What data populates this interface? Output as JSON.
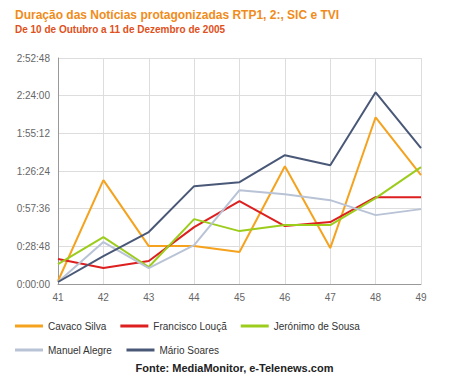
{
  "chart_data": {
    "type": "line",
    "title": "Duração das Notícias protagonizadas RTP1, 2:, SIC e TVI",
    "subtitle": "De 10 de Outubro a 11 de Dezembro de 2005",
    "annotations": [
      "Fonte: MediaMonitor, e-Telenews.com"
    ],
    "categories": [
      "41",
      "42",
      "43",
      "44",
      "45",
      "46",
      "47",
      "48",
      "49"
    ],
    "series": [
      {
        "name": "Cavaco Silva",
        "color": "#f5a21e",
        "values": [
          137,
          4763,
          1740,
          1740,
          1466,
          5404,
          1649,
          7649,
          4992
        ]
      },
      {
        "name": "Francisco Louçã",
        "color": "#dd1f1f",
        "values": [
          1145,
          733,
          1053,
          2611,
          3801,
          2656,
          2840,
          3985,
          3985
        ]
      },
      {
        "name": "Jerónimo de Sousa",
        "color": "#9ccc1c",
        "values": [
          916,
          2153,
          779,
          2977,
          2427,
          2702,
          2702,
          3939,
          5359
        ]
      },
      {
        "name": "Manuel Alegre",
        "color": "#b9c3d6",
        "values": [
          92,
          1924,
          733,
          1786,
          4305,
          4122,
          3847,
          3160,
          3435
        ]
      },
      {
        "name": "Mário Soares",
        "color": "#4a5878",
        "values": [
          92,
          1282,
          2382,
          4488,
          4672,
          5908,
          5450,
          8794,
          6229
        ]
      }
    ],
    "ylim": [
      0,
      10368
    ],
    "yticks": [
      {
        "value": 0,
        "label": "0:00:00"
      },
      {
        "value": 1728,
        "label": "0:28:48"
      },
      {
        "value": 3456,
        "label": "0:57:36"
      },
      {
        "value": 5184,
        "label": "1:26:24"
      },
      {
        "value": 6912,
        "label": "1:55:12"
      },
      {
        "value": 8640,
        "label": "2:24:00"
      },
      {
        "value": 10368,
        "label": "2:52:48"
      }
    ],
    "grid": true,
    "legend": "bottom"
  }
}
